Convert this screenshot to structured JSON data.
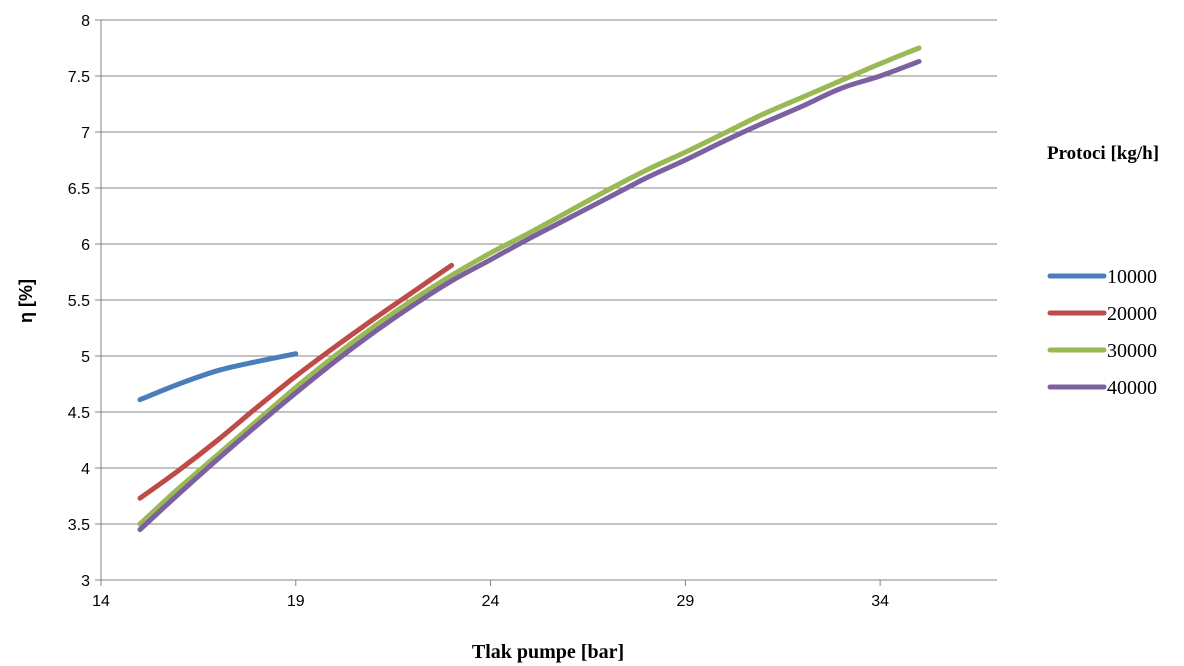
{
  "chart_data": {
    "type": "line",
    "xlabel": "Tlak pumpe [bar]",
    "ylabel": "η [%]",
    "xlim": [
      14,
      37
    ],
    "ylim": [
      3,
      8
    ],
    "xticks": [
      14,
      19,
      24,
      29,
      34
    ],
    "yticks": [
      3,
      3.5,
      4,
      4.5,
      5,
      5.5,
      6,
      6.5,
      7,
      7.5,
      8
    ],
    "ytick_labels": [
      "3",
      "3.5",
      "4",
      "4.5",
      "5",
      "5.5",
      "6",
      "6.5",
      "7",
      "7.5",
      "8"
    ],
    "grid": "horizontal",
    "legend_title": "Protoci [kg/h]",
    "legend_position": "right",
    "series": [
      {
        "name": "10000",
        "color": "#4a7ebb",
        "x": [
          15,
          16,
          17,
          18,
          19
        ],
        "y": [
          4.61,
          4.75,
          4.87,
          4.95,
          5.02
        ]
      },
      {
        "name": "20000",
        "color": "#be4b48",
        "x": [
          15,
          16,
          17,
          18,
          19,
          20,
          21,
          22,
          23
        ],
        "y": [
          3.73,
          3.98,
          4.25,
          4.54,
          4.82,
          5.08,
          5.33,
          5.57,
          5.81
        ]
      },
      {
        "name": "30000",
        "color": "#98b954",
        "x": [
          15,
          16,
          17,
          18,
          19,
          20,
          21,
          22,
          23,
          24,
          25,
          26,
          27,
          28,
          29,
          30,
          31,
          32,
          33,
          34,
          35
        ],
        "y": [
          3.5,
          3.82,
          4.12,
          4.42,
          4.72,
          5.0,
          5.26,
          5.5,
          5.72,
          5.92,
          6.1,
          6.29,
          6.48,
          6.66,
          6.82,
          6.99,
          7.16,
          7.31,
          7.46,
          7.61,
          7.75
        ]
      },
      {
        "name": "40000",
        "color": "#7d60a0",
        "x": [
          15,
          16,
          17,
          18,
          19,
          20,
          21,
          22,
          23,
          24,
          25,
          26,
          27,
          28,
          29,
          30,
          31,
          32,
          33,
          34,
          35
        ],
        "y": [
          3.45,
          3.77,
          4.08,
          4.38,
          4.67,
          4.95,
          5.21,
          5.45,
          5.67,
          5.86,
          6.05,
          6.23,
          6.41,
          6.59,
          6.75,
          6.92,
          7.08,
          7.23,
          7.39,
          7.5,
          7.63
        ]
      }
    ]
  }
}
